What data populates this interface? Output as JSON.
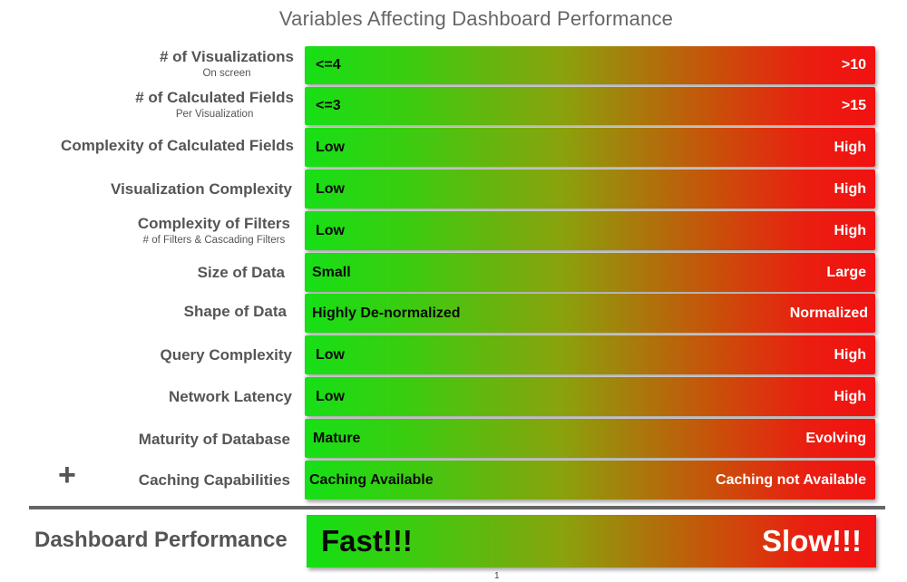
{
  "title": "Variables Affecting Dashboard Performance",
  "rows": [
    {
      "label": "# of Visualizations",
      "sub": "On screen",
      "low": "<=4",
      "high": ">10"
    },
    {
      "label": "# of Calculated Fields",
      "sub": "Per Visualization",
      "low": "<=3",
      "high": ">15"
    },
    {
      "label": "Complexity of Calculated Fields",
      "sub": "",
      "low": "Low",
      "high": "High"
    },
    {
      "label": "Visualization Complexity",
      "sub": "",
      "low": "Low",
      "high": "High"
    },
    {
      "label": "Complexity of Filters",
      "sub": "# of Filters & Cascading Filters",
      "low": "Low",
      "high": "High"
    },
    {
      "label": "Size of Data",
      "sub": "",
      "low": "Small",
      "high": "Large"
    },
    {
      "label": "Shape of Data",
      "sub": "",
      "low": "Highly De-normalized",
      "high": "Normalized"
    },
    {
      "label": "Query Complexity",
      "sub": "",
      "low": "Low",
      "high": "High"
    },
    {
      "label": "Network Latency",
      "sub": "",
      "low": "Low",
      "high": "High"
    },
    {
      "label": "Maturity of Database",
      "sub": "",
      "low": "Mature",
      "high": "Evolving"
    },
    {
      "label": "Caching Capabilities",
      "sub": "",
      "low": "Caching Available",
      "high": "Caching not Available"
    }
  ],
  "plus_symbol": "+",
  "result": {
    "label": "Dashboard Performance",
    "low": "Fast!!!",
    "high": "Slow!!!"
  },
  "page_number": "1",
  "colors": {
    "fast": "#16e016",
    "slow": "#f21111",
    "label_text": "#555555"
  }
}
